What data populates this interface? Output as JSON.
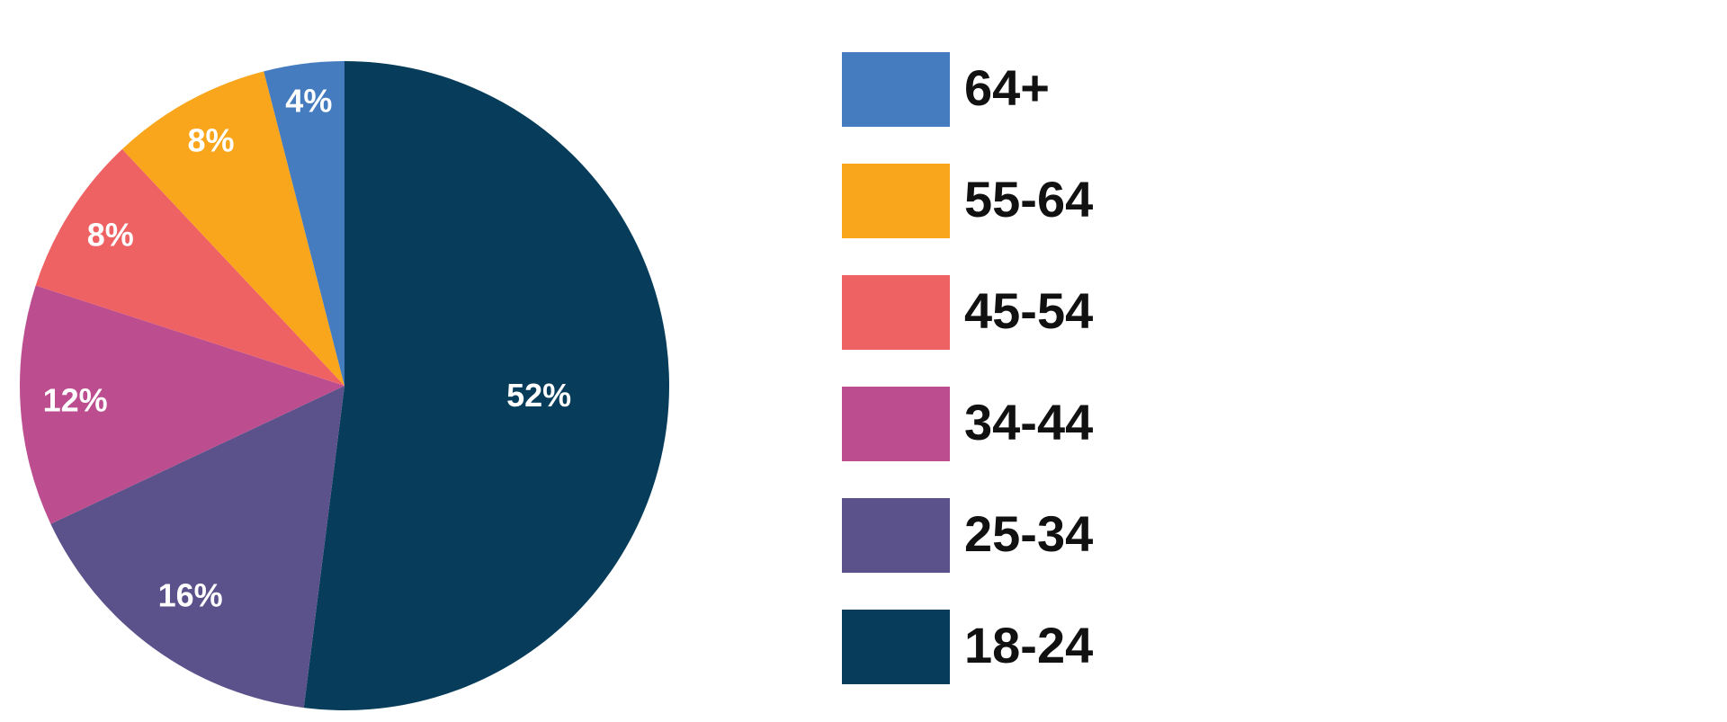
{
  "chart_data": {
    "type": "pie",
    "categories": [
      "18-24",
      "25-34",
      "34-44",
      "45-54",
      "55-64",
      "64+"
    ],
    "values": [
      52,
      16,
      12,
      8,
      8,
      4
    ],
    "value_labels": [
      "52%",
      "16%",
      "12%",
      "8%",
      "8%",
      "4%"
    ],
    "colors": [
      "#073d5a",
      "#5b518b",
      "#bc4e8f",
      "#ef6264",
      "#f9a61d",
      "#447cbf"
    ]
  }
}
